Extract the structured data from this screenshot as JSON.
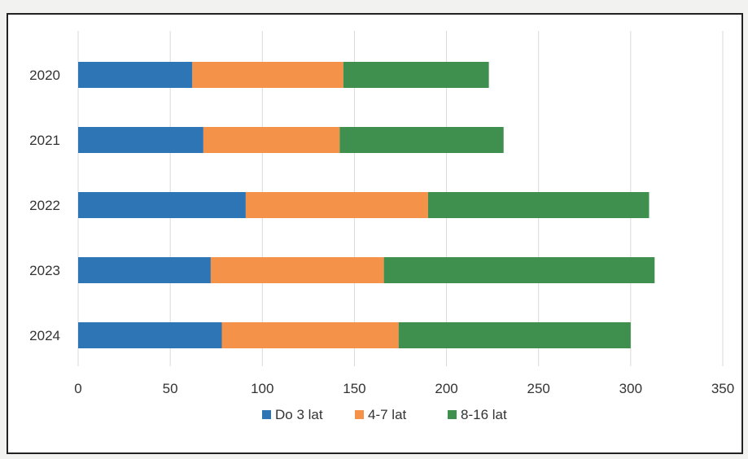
{
  "chart_data": {
    "type": "bar",
    "orientation": "horizontal",
    "stacked": true,
    "categories": [
      "2020",
      "2021",
      "2022",
      "2023",
      "2024"
    ],
    "series": [
      {
        "name": "Do 3 lat",
        "color": "#2e75b6",
        "values": [
          62,
          68,
          91,
          72,
          78
        ]
      },
      {
        "name": "4-7 lat",
        "color": "#f4924a",
        "values": [
          82,
          74,
          99,
          94,
          96
        ]
      },
      {
        "name": "8-16 lat",
        "color": "#3f8f4e",
        "values": [
          79,
          89,
          120,
          147,
          126
        ]
      }
    ],
    "xlim": [
      0,
      350
    ],
    "xticks": [
      0,
      50,
      100,
      150,
      200,
      250,
      300,
      350
    ],
    "grid": true,
    "legend_position": "bottom"
  }
}
